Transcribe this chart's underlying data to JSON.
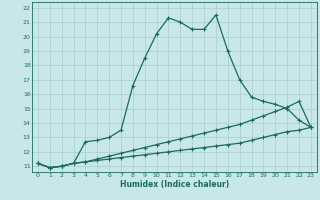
{
  "xlabel": "Humidex (Indice chaleur)",
  "bg_color": "#c8e8e8",
  "grid_color": "#aacccc",
  "line_color": "#1a6b5a",
  "xlim": [
    -0.5,
    23.5
  ],
  "ylim": [
    10.6,
    22.4
  ],
  "xticks": [
    0,
    1,
    2,
    3,
    4,
    5,
    6,
    7,
    8,
    9,
    10,
    11,
    12,
    13,
    14,
    15,
    16,
    17,
    18,
    19,
    20,
    21,
    22,
    23
  ],
  "yticks": [
    11,
    12,
    13,
    14,
    15,
    16,
    17,
    18,
    19,
    20,
    21,
    22
  ],
  "line1_x": [
    0,
    1,
    2,
    3,
    4,
    5,
    6,
    7,
    8,
    9,
    10,
    11,
    12,
    13,
    14,
    15,
    16,
    17,
    18,
    19,
    20,
    21,
    22,
    23
  ],
  "line1_y": [
    11.2,
    10.9,
    11.0,
    11.2,
    12.7,
    12.8,
    13.0,
    13.5,
    16.6,
    18.5,
    20.2,
    21.3,
    21.0,
    20.5,
    20.5,
    21.5,
    19.0,
    17.0,
    15.8,
    15.5,
    15.3,
    15.0,
    14.2,
    13.7
  ],
  "line2_x": [
    0,
    1,
    2,
    3,
    4,
    5,
    6,
    7,
    8,
    9,
    10,
    11,
    12,
    13,
    14,
    15,
    16,
    17,
    18,
    19,
    20,
    21,
    22,
    23
  ],
  "line2_y": [
    11.2,
    10.9,
    11.0,
    11.2,
    11.3,
    11.5,
    11.7,
    11.9,
    12.1,
    12.3,
    12.5,
    12.7,
    12.9,
    13.1,
    13.3,
    13.5,
    13.7,
    13.9,
    14.2,
    14.5,
    14.8,
    15.1,
    15.5,
    13.7
  ],
  "line3_x": [
    0,
    1,
    2,
    3,
    4,
    5,
    6,
    7,
    8,
    9,
    10,
    11,
    12,
    13,
    14,
    15,
    16,
    17,
    18,
    19,
    20,
    21,
    22,
    23
  ],
  "line3_y": [
    11.2,
    10.9,
    11.0,
    11.2,
    11.3,
    11.4,
    11.5,
    11.6,
    11.7,
    11.8,
    11.9,
    12.0,
    12.1,
    12.2,
    12.3,
    12.4,
    12.5,
    12.6,
    12.8,
    13.0,
    13.2,
    13.4,
    13.5,
    13.7
  ]
}
